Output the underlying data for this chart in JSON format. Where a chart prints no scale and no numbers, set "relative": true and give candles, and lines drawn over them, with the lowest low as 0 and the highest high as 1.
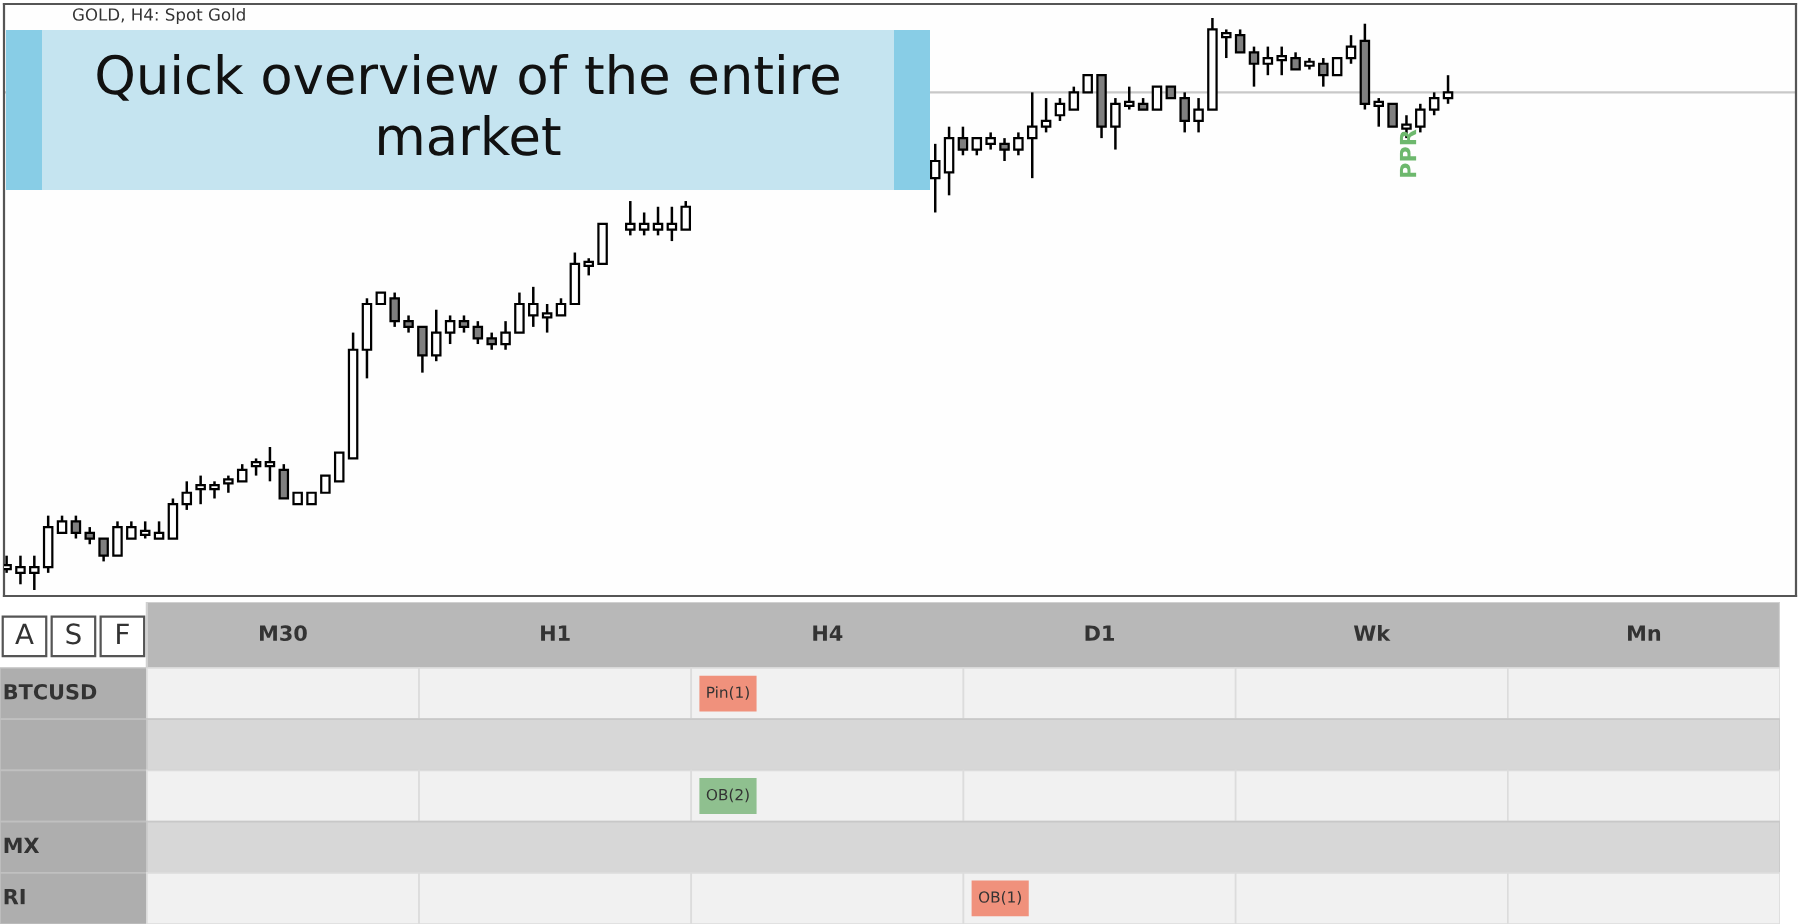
{
  "chart_data": [
    {
      "type": "candlestick",
      "title": "GOLD, H4: Spot Gold",
      "relative": true,
      "tick_labels": false,
      "categories": [
        null,
        null,
        null,
        null,
        null,
        null,
        null,
        null,
        null,
        null,
        null,
        null,
        null,
        null,
        null,
        null,
        null,
        null,
        null,
        null,
        null,
        null,
        null,
        null,
        null,
        null,
        null,
        null,
        null,
        null,
        null,
        null,
        null,
        null,
        null,
        null,
        null,
        null,
        null,
        null,
        null,
        null,
        null,
        null,
        null,
        null,
        null,
        null,
        null,
        null,
        null,
        null,
        null,
        null,
        null,
        null,
        null,
        null,
        null,
        null,
        null,
        null,
        null,
        null,
        null,
        null,
        null,
        null,
        null,
        null,
        null,
        null,
        null,
        null,
        null,
        null,
        null,
        null,
        null,
        null,
        null,
        null,
        null,
        null,
        null,
        null,
        null,
        null,
        null,
        null,
        null,
        null,
        null,
        null,
        null,
        null,
        null,
        null,
        null,
        null,
        null,
        null,
        null,
        null,
        null
      ],
      "ohlc": [
        [
          0.04,
          0.06,
          0.03,
          0.04
        ],
        [
          0.03,
          0.06,
          0.01,
          0.04
        ],
        [
          0.03,
          0.06,
          0,
          0.04
        ],
        [
          0.04,
          0.13,
          0.03,
          0.11
        ],
        [
          0.1,
          0.13,
          0.1,
          0.12
        ],
        [
          0.12,
          0.13,
          0.09,
          0.1
        ],
        [
          0.1,
          0.11,
          0.08,
          0.09
        ],
        [
          0.09,
          0.09,
          0.05,
          0.06
        ],
        [
          0.06,
          0.12,
          0.06,
          0.11
        ],
        [
          0.09,
          0.12,
          0.09,
          0.11
        ],
        [
          0.1,
          0.12,
          0.09,
          0.1
        ],
        [
          0.09,
          0.12,
          0.09,
          0.1
        ],
        [
          0.09,
          0.16,
          0.09,
          0.15
        ],
        [
          0.15,
          0.19,
          0.14,
          0.17
        ],
        [
          0.18,
          0.2,
          0.15,
          0.18
        ],
        [
          0.18,
          0.19,
          0.16,
          0.18
        ],
        [
          0.19,
          0.2,
          0.17,
          0.19
        ],
        [
          0.19,
          0.22,
          0.19,
          0.21
        ],
        [
          0.22,
          0.23,
          0.2,
          0.22
        ],
        [
          0.22,
          0.25,
          0.19,
          0.22
        ],
        [
          0.21,
          0.22,
          0.16,
          0.16
        ],
        [
          0.15,
          0.17,
          0.15,
          0.17
        ],
        [
          0.15,
          0.17,
          0.15,
          0.17
        ],
        [
          0.17,
          0.2,
          0.17,
          0.2
        ],
        [
          0.19,
          0.24,
          0.19,
          0.24
        ],
        [
          0.23,
          0.45,
          0.23,
          0.42
        ],
        [
          0.42,
          0.51,
          0.37,
          0.5
        ],
        [
          0.5,
          0.52,
          0.5,
          0.52
        ],
        [
          0.51,
          0.52,
          0.46,
          0.47
        ],
        [
          0.47,
          0.48,
          0.45,
          0.46
        ],
        [
          0.46,
          0.46,
          0.38,
          0.41
        ],
        [
          0.41,
          0.49,
          0.4,
          0.45
        ],
        [
          0.45,
          0.48,
          0.43,
          0.47
        ],
        [
          0.47,
          0.48,
          0.45,
          0.46
        ],
        [
          0.46,
          0.47,
          0.43,
          0.44
        ],
        [
          0.44,
          0.45,
          0.42,
          0.43
        ],
        [
          0.43,
          0.47,
          0.42,
          0.45
        ],
        [
          0.45,
          0.52,
          0.45,
          0.5
        ],
        [
          0.48,
          0.53,
          0.46,
          0.5
        ],
        [
          0.48,
          0.5,
          0.45,
          0.48
        ],
        [
          0.48,
          0.51,
          0.48,
          0.5
        ],
        [
          0.5,
          0.59,
          0.5,
          0.57
        ],
        [
          0.57,
          0.58,
          0.55,
          0.57
        ],
        [
          0.57,
          0.64,
          0.57,
          0.64
        ],
        null,
        [
          0.63,
          0.68,
          0.62,
          0.64
        ],
        [
          0.63,
          0.66,
          0.62,
          0.64
        ],
        [
          0.63,
          0.67,
          0.62,
          0.64
        ],
        [
          0.63,
          0.67,
          0.61,
          0.64
        ],
        [
          0.63,
          0.68,
          0.63,
          0.67
        ],
        null,
        null,
        null,
        null,
        null,
        null,
        null,
        null,
        null,
        null,
        null,
        null,
        null,
        null,
        null,
        null,
        null,
        [
          0.72,
          0.78,
          0.66,
          0.75
        ],
        [
          0.73,
          0.81,
          0.69,
          0.79
        ],
        [
          0.79,
          0.81,
          0.76,
          0.77
        ],
        [
          0.77,
          0.79,
          0.76,
          0.79
        ],
        [
          0.78,
          0.8,
          0.77,
          0.79
        ],
        [
          0.78,
          0.79,
          0.75,
          0.77
        ],
        [
          0.77,
          0.8,
          0.76,
          0.79
        ],
        [
          0.79,
          0.87,
          0.72,
          0.81
        ],
        [
          0.81,
          0.86,
          0.8,
          0.82
        ],
        [
          0.83,
          0.86,
          0.82,
          0.85
        ],
        [
          0.84,
          0.88,
          0.84,
          0.87
        ],
        [
          0.87,
          0.9,
          0.87,
          0.9
        ],
        [
          0.9,
          0.9,
          0.79,
          0.81
        ],
        [
          0.81,
          0.86,
          0.77,
          0.85
        ],
        [
          0.85,
          0.88,
          0.84,
          0.85
        ],
        [
          0.85,
          0.86,
          0.84,
          0.84
        ],
        [
          0.84,
          0.88,
          0.84,
          0.88
        ],
        [
          0.88,
          0.88,
          0.86,
          0.86
        ],
        [
          0.86,
          0.87,
          0.8,
          0.82
        ],
        [
          0.82,
          0.86,
          0.8,
          0.84
        ],
        [
          0.84,
          1,
          0.84,
          0.98
        ],
        [
          0.97,
          0.98,
          0.93,
          0.97
        ],
        [
          0.97,
          0.98,
          0.94,
          0.94
        ],
        [
          0.94,
          0.95,
          0.88,
          0.92
        ],
        [
          0.92,
          0.95,
          0.9,
          0.93
        ],
        [
          0.93,
          0.95,
          0.9,
          0.93
        ],
        [
          0.93,
          0.94,
          0.91,
          0.91
        ],
        [
          0.92,
          0.93,
          0.91,
          0.92
        ],
        [
          0.92,
          0.93,
          0.88,
          0.9
        ],
        [
          0.9,
          0.93,
          0.9,
          0.93
        ],
        [
          0.93,
          0.97,
          0.92,
          0.95
        ],
        [
          0.96,
          0.99,
          0.84,
          0.85
        ],
        [
          0.85,
          0.86,
          0.81,
          0.85
        ],
        [
          0.85,
          0.85,
          0.81,
          0.81
        ],
        [
          0.81,
          0.83,
          0.79,
          0.81
        ],
        [
          0.81,
          0.85,
          0.8,
          0.84
        ],
        [
          0.84,
          0.87,
          0.83,
          0.86
        ],
        [
          0.86,
          0.9,
          0.85,
          0.87
        ]
      ],
      "ref_lines": [
        {
          "axis": "y",
          "value": 0.87,
          "color": "#c8c8c8"
        }
      ],
      "annotations": [
        "Quick overview of the entire market",
        "PPR"
      ]
    },
    {
      "type": "other",
      "categories": [
        "M30",
        "H1",
        "H4",
        "D1",
        "Wk",
        "Mn"
      ],
      "y_categories": [
        "BTCUSD",
        null,
        null,
        "MX",
        "RI"
      ],
      "cell_labels": [
        [
          null,
          null,
          "Pin(1)",
          null,
          null,
          null
        ],
        [
          null,
          null,
          null,
          null,
          null,
          null
        ],
        [
          null,
          null,
          "OB(2)",
          null,
          null,
          null
        ],
        [
          null,
          null,
          null,
          null,
          null,
          null
        ],
        [
          null,
          null,
          null,
          "OB(1)",
          null,
          null
        ]
      ],
      "annotations": [
        "A",
        "S",
        "F"
      ]
    }
  ]
}
